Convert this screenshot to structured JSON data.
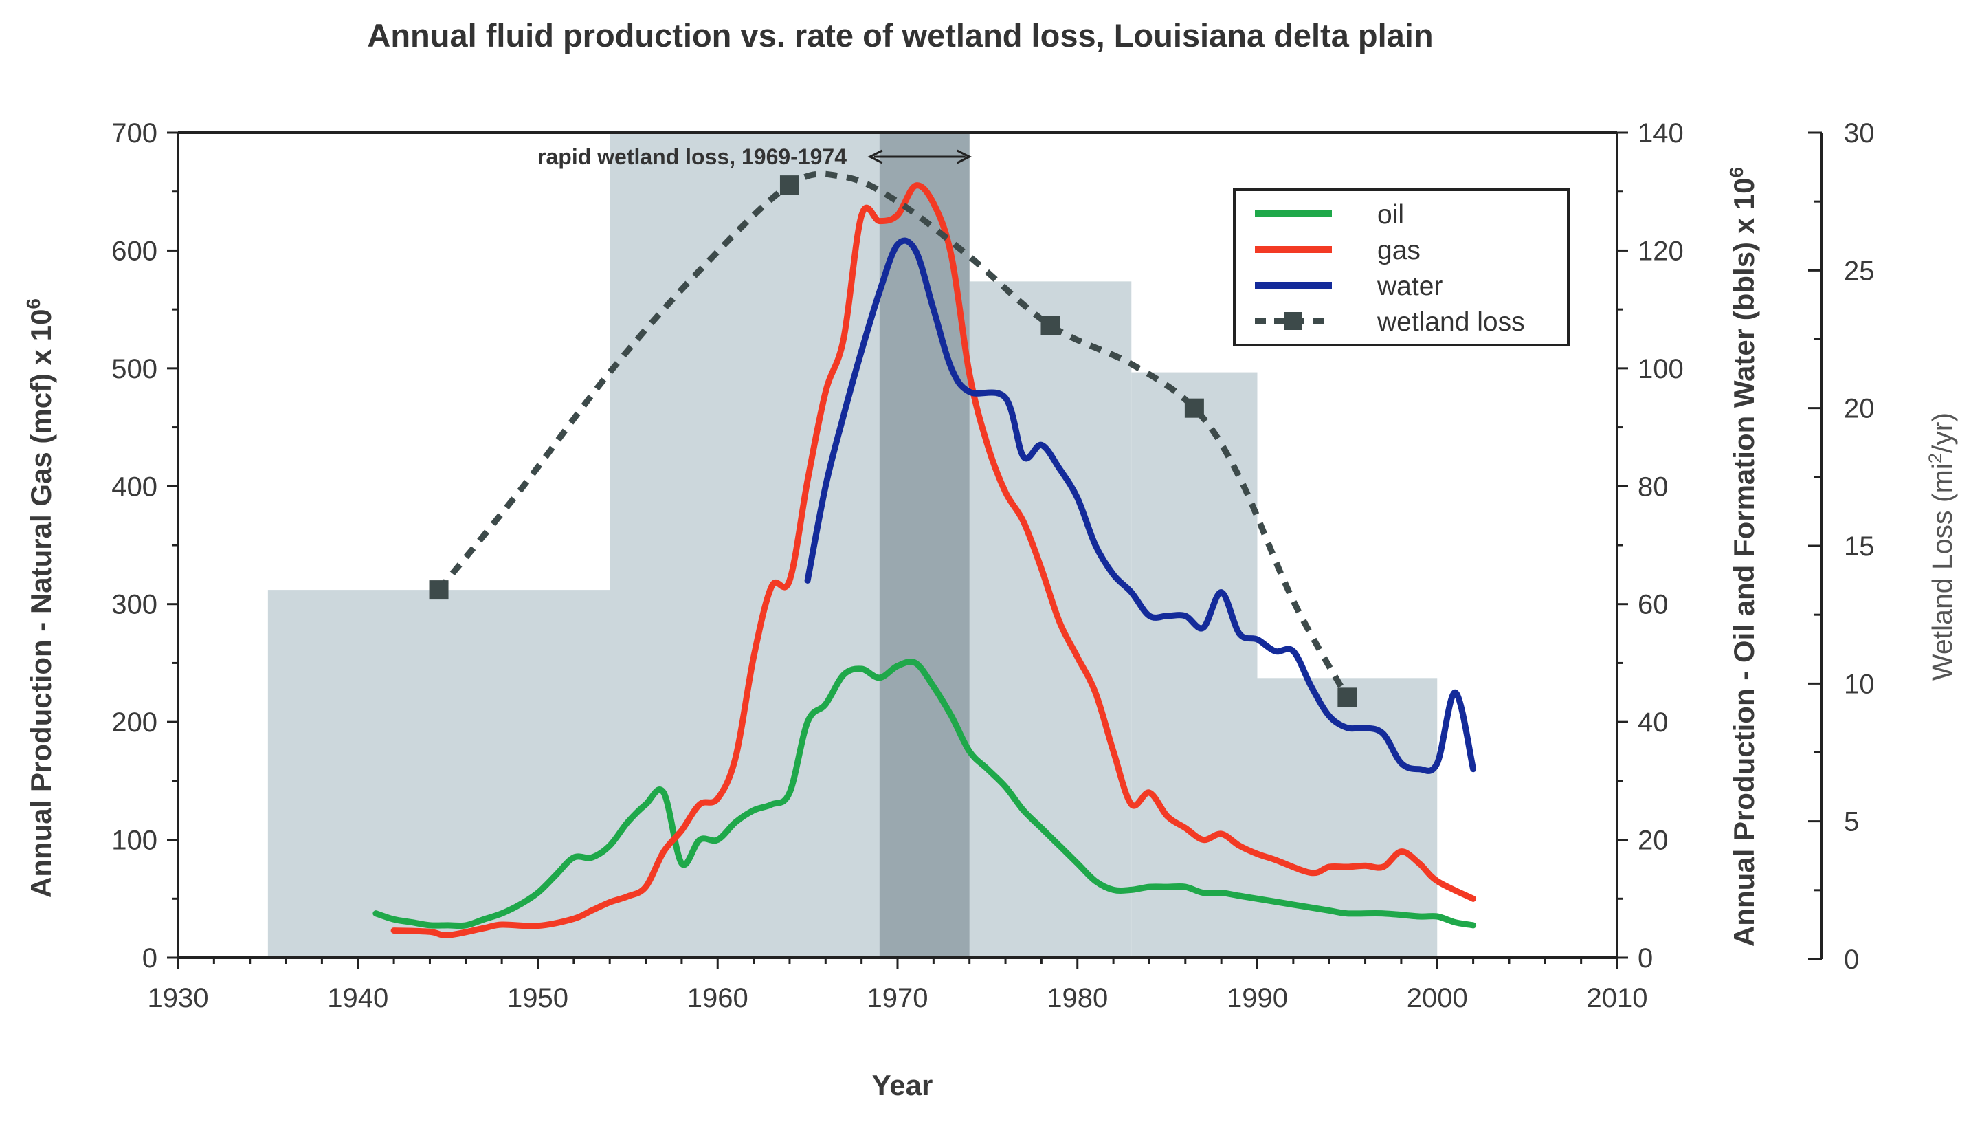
{
  "chart_data": {
    "type": "line",
    "title": "Annual fluid production vs. rate of wetland loss, Louisiana delta plain",
    "xlabel": "Year",
    "ylabel_left": "Annual Production - Natural Gas (mcf) x 10",
    "ylabel_left_exp": "6",
    "ylabel_right": "Annual Production - Oil and Formation Water (bbls) x 10",
    "ylabel_right_exp": "6",
    "ylabel_far_right": "Wetland Loss (mi",
    "ylabel_far_right_exp": "2",
    "ylabel_far_right_tail": "/yr)",
    "xlim": [
      1930,
      2010
    ],
    "ylim_left": [
      0,
      700
    ],
    "ylim_right": [
      0,
      140
    ],
    "ylim_far_right": [
      0,
      30
    ],
    "x_ticks": [
      "1930",
      "1940",
      "1950",
      "1960",
      "1970",
      "1980",
      "1990",
      "2000",
      "2010"
    ],
    "y_left_ticks": [
      "0",
      "100",
      "200",
      "300",
      "400",
      "500",
      "600",
      "700"
    ],
    "y_right_ticks": [
      "0",
      "20",
      "40",
      "60",
      "80",
      "100",
      "120",
      "140"
    ],
    "y_far_right_ticks": [
      "0",
      "5",
      "10",
      "15",
      "20",
      "25",
      "30"
    ],
    "annotation": "rapid wetland loss, 1969-1974",
    "highlight_range": [
      1969,
      1974
    ],
    "colors": {
      "oil": "#1fa84a",
      "gas": "#f33a24",
      "water": "#142b9a",
      "wetland": "#3d4a4a",
      "bars": "#ccd7dc",
      "highlight": "#9aa8af"
    },
    "legend": [
      "oil",
      "gas",
      "water",
      "wetland loss"
    ],
    "wetland_loss_bars": [
      {
        "x0": 1935,
        "x1": 1954,
        "value": 13.4
      },
      {
        "x0": 1954,
        "x1": 1974,
        "value": 30.0
      },
      {
        "x0": 1974,
        "x1": 1983,
        "value": 24.6
      },
      {
        "x0": 1983,
        "x1": 1990,
        "value": 21.3
      },
      {
        "x0": 1990,
        "x1": 2000,
        "value": 10.2
      }
    ],
    "wetland_loss_points": [
      {
        "x": 1944.5,
        "y": 13.4
      },
      {
        "x": 1964,
        "y": 28.1
      },
      {
        "x": 1978.5,
        "y": 23.0
      },
      {
        "x": 1986.5,
        "y": 20.0
      },
      {
        "x": 1995,
        "y": 9.5
      }
    ],
    "wetland_loss_curve": [
      [
        1944.5,
        13.4
      ],
      [
        1949,
        17.0
      ],
      [
        1954,
        21.3
      ],
      [
        1959,
        25.0
      ],
      [
        1964,
        28.1
      ],
      [
        1967,
        28.4
      ],
      [
        1970,
        27.5
      ],
      [
        1974,
        25.5
      ],
      [
        1978.5,
        23.0
      ],
      [
        1983,
        21.6
      ],
      [
        1986.5,
        20.0
      ],
      [
        1989,
        17.5
      ],
      [
        1992,
        13.0
      ],
      [
        1995,
        9.5
      ]
    ],
    "series": [
      {
        "name": "gas",
        "axis": "left",
        "points": [
          [
            1942,
            23
          ],
          [
            1944,
            22
          ],
          [
            1945,
            19
          ],
          [
            1947,
            25
          ],
          [
            1948,
            28
          ],
          [
            1950,
            27
          ],
          [
            1952,
            33
          ],
          [
            1953,
            40
          ],
          [
            1954,
            47
          ],
          [
            1955,
            52
          ],
          [
            1956,
            60
          ],
          [
            1957,
            90
          ],
          [
            1958,
            108
          ],
          [
            1959,
            130
          ],
          [
            1960,
            135
          ],
          [
            1961,
            170
          ],
          [
            1962,
            255
          ],
          [
            1963,
            315
          ],
          [
            1964,
            320
          ],
          [
            1965,
            405
          ],
          [
            1966,
            480
          ],
          [
            1967,
            525
          ],
          [
            1968,
            630
          ],
          [
            1969,
            625
          ],
          [
            1970,
            630
          ],
          [
            1971,
            655
          ],
          [
            1972,
            640
          ],
          [
            1973,
            595
          ],
          [
            1974,
            495
          ],
          [
            1975,
            435
          ],
          [
            1976,
            395
          ],
          [
            1977,
            370
          ],
          [
            1978,
            330
          ],
          [
            1979,
            285
          ],
          [
            1980,
            255
          ],
          [
            1981,
            225
          ],
          [
            1982,
            175
          ],
          [
            1983,
            130
          ],
          [
            1984,
            140
          ],
          [
            1985,
            120
          ],
          [
            1986,
            110
          ],
          [
            1987,
            100
          ],
          [
            1988,
            105
          ],
          [
            1989,
            95
          ],
          [
            1990,
            88
          ],
          [
            1991,
            83
          ],
          [
            1993,
            72
          ],
          [
            1994,
            77
          ],
          [
            1995,
            77
          ],
          [
            1996,
            78
          ],
          [
            1997,
            77
          ],
          [
            1998,
            90
          ],
          [
            1999,
            80
          ],
          [
            2000,
            65
          ],
          [
            2002,
            50
          ]
        ]
      },
      {
        "name": "water",
        "axis": "right",
        "points": [
          [
            1965,
            64
          ],
          [
            1966,
            80
          ],
          [
            1967,
            92
          ],
          [
            1968,
            103
          ],
          [
            1969,
            113
          ],
          [
            1970,
            121
          ],
          [
            1971,
            120
          ],
          [
            1972,
            110
          ],
          [
            1973,
            100
          ],
          [
            1974,
            96
          ],
          [
            1976,
            95
          ],
          [
            1977,
            85
          ],
          [
            1978,
            87
          ],
          [
            1979,
            83
          ],
          [
            1980,
            78
          ],
          [
            1981,
            70
          ],
          [
            1982,
            65
          ],
          [
            1983,
            62
          ],
          [
            1984,
            58
          ],
          [
            1985,
            58
          ],
          [
            1986,
            58
          ],
          [
            1987,
            56
          ],
          [
            1988,
            62
          ],
          [
            1989,
            55
          ],
          [
            1990,
            54
          ],
          [
            1991,
            52
          ],
          [
            1992,
            52
          ],
          [
            1993,
            46
          ],
          [
            1994,
            41
          ],
          [
            1995,
            39
          ],
          [
            1996,
            39
          ],
          [
            1997,
            38
          ],
          [
            1998,
            33
          ],
          [
            1999,
            32
          ],
          [
            2000,
            33
          ],
          [
            2001,
            45
          ],
          [
            2002,
            32
          ]
        ]
      },
      {
        "name": "oil",
        "axis": "right",
        "points": [
          [
            1941,
            7.5
          ],
          [
            1942,
            6.5
          ],
          [
            1943,
            6
          ],
          [
            1944,
            5.5
          ],
          [
            1945,
            5.5
          ],
          [
            1946,
            5.5
          ],
          [
            1947,
            6.5
          ],
          [
            1948,
            7.5
          ],
          [
            1949,
            9
          ],
          [
            1950,
            11
          ],
          [
            1951,
            14
          ],
          [
            1952,
            17
          ],
          [
            1953,
            17
          ],
          [
            1954,
            19
          ],
          [
            1955,
            23
          ],
          [
            1956,
            26
          ],
          [
            1957,
            28
          ],
          [
            1958,
            16
          ],
          [
            1959,
            20
          ],
          [
            1960,
            20
          ],
          [
            1961,
            23
          ],
          [
            1962,
            25
          ],
          [
            1963,
            26
          ],
          [
            1964,
            28
          ],
          [
            1965,
            40
          ],
          [
            1966,
            43
          ],
          [
            1967,
            48
          ],
          [
            1968,
            49
          ],
          [
            1969,
            47.5
          ],
          [
            1970,
            49.5
          ],
          [
            1971,
            50
          ],
          [
            1972,
            46
          ],
          [
            1973,
            41
          ],
          [
            1974,
            35
          ],
          [
            1975,
            32
          ],
          [
            1976,
            29
          ],
          [
            1977,
            25
          ],
          [
            1978,
            22
          ],
          [
            1979,
            19
          ],
          [
            1980,
            16
          ],
          [
            1981,
            13
          ],
          [
            1982,
            11.5
          ],
          [
            1983,
            11.5
          ],
          [
            1984,
            12
          ],
          [
            1985,
            12
          ],
          [
            1986,
            12
          ],
          [
            1987,
            11
          ],
          [
            1988,
            11
          ],
          [
            1989,
            10.5
          ],
          [
            1990,
            10
          ],
          [
            1992,
            9
          ],
          [
            1994,
            8
          ],
          [
            1995,
            7.5
          ],
          [
            1997,
            7.5
          ],
          [
            1999,
            7
          ],
          [
            2000,
            7
          ],
          [
            2001,
            6
          ],
          [
            2002,
            5.5
          ]
        ]
      }
    ]
  }
}
